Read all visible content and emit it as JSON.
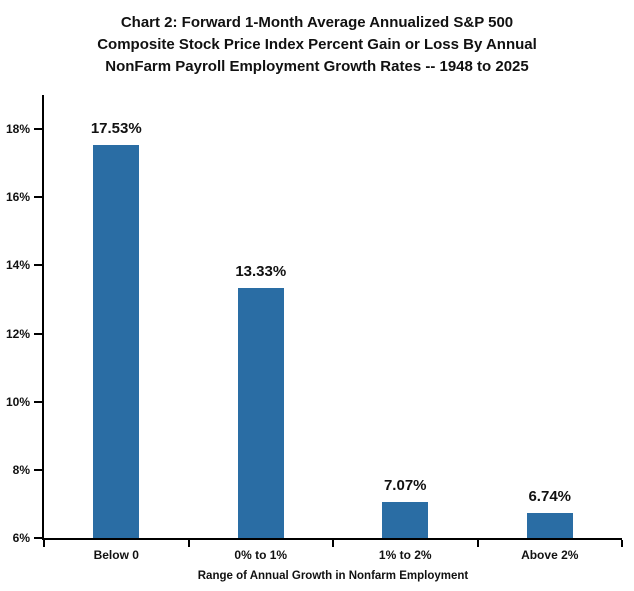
{
  "title_lines": [
    "Chart 2: Forward 1-Month Average Annualized S&P 500",
    "Composite Stock Price Index Percent Gain or Loss  By Annual",
    "NonFarm Payroll Employment Growth Rates -- 1948 to 2025"
  ],
  "chart_data": {
    "type": "bar",
    "title": "Chart 2: Forward 1-Month Average Annualized S&P 500 Composite Stock Price Index Percent Gain or Loss By Annual NonFarm Payroll Employment Growth Rates -- 1948 to 2025",
    "categories": [
      "Below 0",
      "0% to 1%",
      "1% to 2%",
      "Above 2%"
    ],
    "values": [
      17.53,
      13.33,
      7.07,
      6.74
    ],
    "value_labels": [
      "17.53%",
      "13.33%",
      "7.07%",
      "6.74%"
    ],
    "xlabel": "Range of Annual Growth in Nonfarm Employment",
    "ylabel": "",
    "ylim": [
      6,
      19
    ],
    "ytick_values": [
      6,
      8,
      10,
      12,
      14,
      16,
      18
    ],
    "ytick_labels": [
      "6%",
      "8%",
      "10%",
      "12%",
      "14%",
      "16%",
      "18%"
    ],
    "grid": false,
    "legend": "none",
    "bar_color": "#2a6da4"
  }
}
